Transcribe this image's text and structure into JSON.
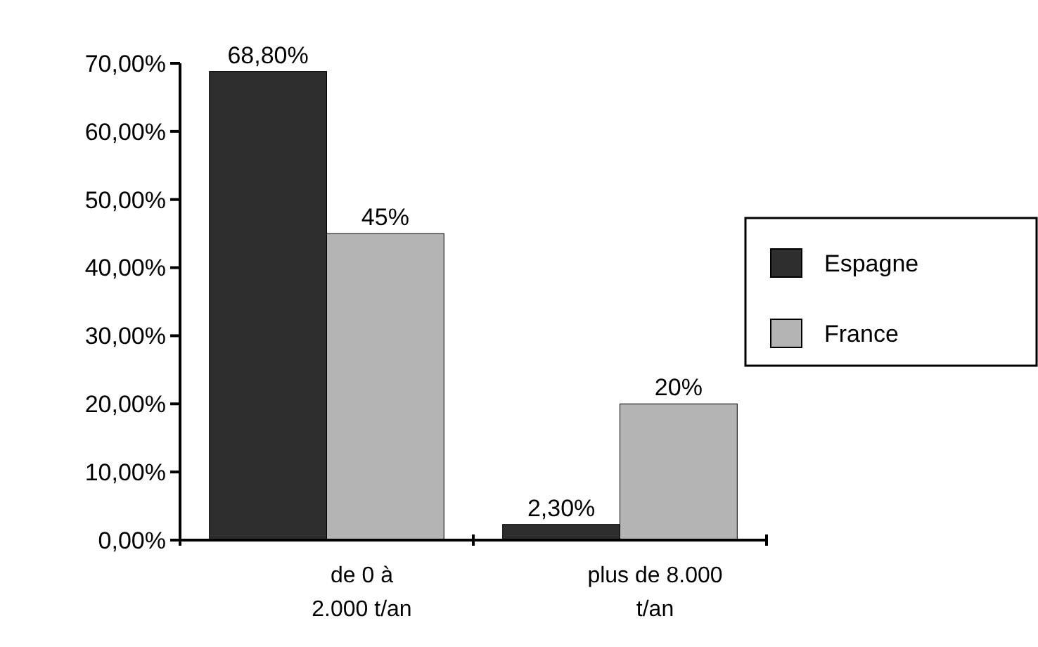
{
  "chart_data": {
    "type": "bar",
    "categories": [
      "de 0 à\n2.000 t/an",
      "plus de 8.000\nt/an"
    ],
    "series": [
      {
        "name": "Espagne",
        "color": "#2e2e2e",
        "values": [
          68.8,
          2.3
        ],
        "value_labels": [
          "68,80%",
          "2,30%"
        ]
      },
      {
        "name": "France",
        "color": "#b4b4b4",
        "values": [
          45,
          20
        ],
        "value_labels": [
          "45%",
          "20%"
        ]
      }
    ],
    "ylim": [
      0,
      70
    ],
    "yticks": [
      {
        "value": 0,
        "label": "0,00%"
      },
      {
        "value": 10,
        "label": "10,00%"
      },
      {
        "value": 20,
        "label": "20,00%"
      },
      {
        "value": 30,
        "label": "30,00%"
      },
      {
        "value": 40,
        "label": "40,00%"
      },
      {
        "value": 50,
        "label": "50,00%"
      },
      {
        "value": 60,
        "label": "60,00%"
      },
      {
        "value": 70,
        "label": "70,00%"
      }
    ],
    "grid": false,
    "legend": "right"
  }
}
